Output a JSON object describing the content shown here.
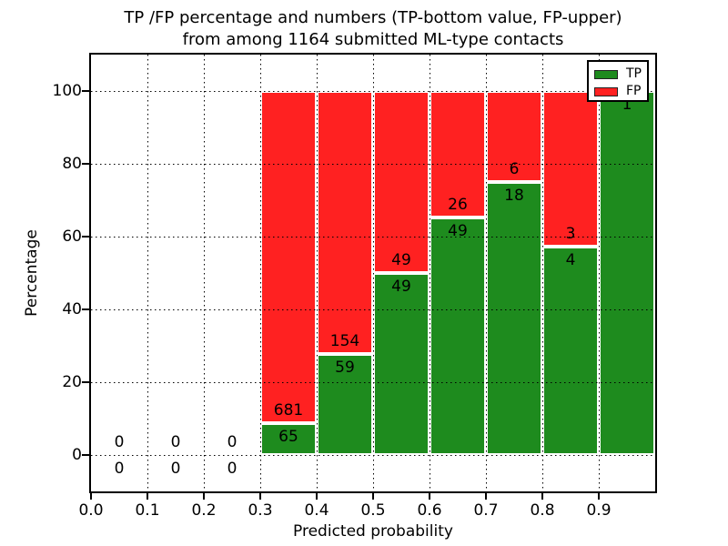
{
  "figure": {
    "title_line1": "TP /FP percentage and numbers (TP-bottom value, FP-upper)",
    "title_line2": "from among 1164 submitted ML-type contacts"
  },
  "chart_data": {
    "type": "bar",
    "stacked": true,
    "normalized": "each bin scaled to 100%",
    "title": "TP /FP percentage and numbers (TP-bottom value, FP-upper) from among 1164 submitted ML-type contacts",
    "total_submitted": 1164,
    "xlabel": "Predicted probability",
    "ylabel": "Percentage",
    "xlim": [
      0.0,
      1.0
    ],
    "ylim": [
      -10,
      110
    ],
    "xticks": [
      0.0,
      0.1,
      0.2,
      0.3,
      0.4,
      0.5,
      0.6,
      0.7,
      0.8,
      0.9
    ],
    "yticks": [
      0,
      20,
      40,
      60,
      80,
      100
    ],
    "grid": true,
    "bin_width": 0.1,
    "categories": [
      "0.0-0.1",
      "0.1-0.2",
      "0.2-0.3",
      "0.3-0.4",
      "0.4-0.5",
      "0.5-0.6",
      "0.6-0.7",
      "0.7-0.8",
      "0.8-0.9",
      "0.9-1.0"
    ],
    "series": [
      {
        "name": "TP",
        "color": "#1e8b1e",
        "values": [
          0,
          0,
          0,
          65,
          59,
          49,
          49,
          18,
          4,
          1
        ]
      },
      {
        "name": "FP",
        "color": "#ff2121",
        "values": [
          0,
          0,
          0,
          681,
          154,
          49,
          26,
          6,
          3,
          0
        ]
      }
    ],
    "bins": [
      {
        "x_start": 0.0,
        "tp": 0,
        "fp": 0
      },
      {
        "x_start": 0.1,
        "tp": 0,
        "fp": 0
      },
      {
        "x_start": 0.2,
        "tp": 0,
        "fp": 0
      },
      {
        "x_start": 0.3,
        "tp": 65,
        "fp": 681
      },
      {
        "x_start": 0.4,
        "tp": 59,
        "fp": 154
      },
      {
        "x_start": 0.5,
        "tp": 49,
        "fp": 49
      },
      {
        "x_start": 0.6,
        "tp": 49,
        "fp": 26
      },
      {
        "x_start": 0.7,
        "tp": 18,
        "fp": 6
      },
      {
        "x_start": 0.8,
        "tp": 4,
        "fp": 3
      },
      {
        "x_start": 0.9,
        "tp": 1,
        "fp": 0
      }
    ],
    "legend": {
      "position": "upper right",
      "entries": [
        {
          "label": "TP",
          "color": "#1e8b1e"
        },
        {
          "label": "FP",
          "color": "#ff2121"
        }
      ]
    }
  }
}
